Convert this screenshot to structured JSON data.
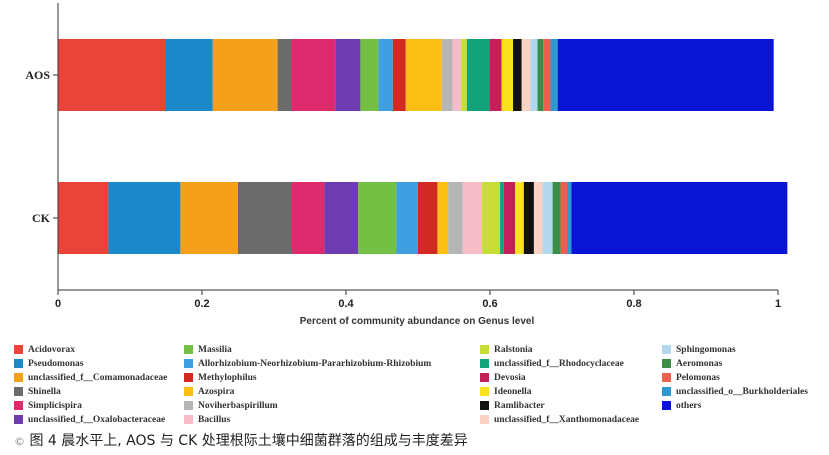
{
  "caption": {
    "prefix": "©",
    "text": "图 4 晨水平上, AOS 与 CK 处理根际土壤中细菌群落的组成与丰度差异"
  },
  "chart_data": {
    "type": "bar",
    "orientation": "horizontal",
    "stacked": true,
    "title": "",
    "xlabel": "Percent of community abundance on Genus level",
    "ylabel": "",
    "xlim": [
      0,
      1
    ],
    "xticks": [
      "0",
      "0.2",
      "0.4",
      "0.6",
      "0.8",
      "1"
    ],
    "categories": [
      "AOS",
      "CK"
    ],
    "legend_position": "bottom",
    "series": [
      {
        "name": "Acidovorax",
        "color": "#e8443a",
        "values": [
          0.15,
          0.07
        ]
      },
      {
        "name": "Pseudomonas",
        "color": "#1a88c9",
        "values": [
          0.065,
          0.1
        ]
      },
      {
        "name": "unclassified_f__Comamonadaceae",
        "color": "#f5a01a",
        "values": [
          0.09,
          0.08
        ]
      },
      {
        "name": "Shinella",
        "color": "#6b6b6b",
        "values": [
          0.02,
          0.075
        ]
      },
      {
        "name": "Simplicispira",
        "color": "#dc2a6c",
        "values": [
          0.06,
          0.045
        ]
      },
      {
        "name": "unclassified_f__Oxalobacteraceae",
        "color": "#6e3bb0",
        "values": [
          0.035,
          0.047
        ]
      },
      {
        "name": "Massilia",
        "color": "#74c044",
        "values": [
          0.025,
          0.053
        ]
      },
      {
        "name": "Allorhizobium-Neorhizobium-Pararhizobium-Rhizobium",
        "color": "#3f9fe0",
        "values": [
          0.02,
          0.03
        ]
      },
      {
        "name": "Methylophilus",
        "color": "#d02a22",
        "values": [
          0.018,
          0.027
        ]
      },
      {
        "name": "Azospira",
        "color": "#fbbf16",
        "values": [
          0.05,
          0.015
        ]
      },
      {
        "name": "Noviherbaspirillum",
        "color": "#b5b5b5",
        "values": [
          0.015,
          0.02
        ]
      },
      {
        "name": "Bacillus",
        "color": "#f6bdc9",
        "values": [
          0.012,
          0.027
        ]
      },
      {
        "name": "Ralstonia",
        "color": "#c8dc38",
        "values": [
          0.008,
          0.025
        ]
      },
      {
        "name": "unclassified_f__Rhodocyclaceae",
        "color": "#12a37b",
        "values": [
          0.032,
          0.005
        ]
      },
      {
        "name": "Devosia",
        "color": "#c4205a",
        "values": [
          0.016,
          0.016
        ]
      },
      {
        "name": "Ideonella",
        "color": "#fbe21e",
        "values": [
          0.016,
          0.012
        ]
      },
      {
        "name": "Ramlibacter",
        "color": "#111111",
        "values": [
          0.012,
          0.014
        ]
      },
      {
        "name": "unclassified_f__Xanthomonadaceae",
        "color": "#f9d2c4",
        "values": [
          0.012,
          0.012
        ]
      },
      {
        "name": "Sphingomonas",
        "color": "#b3d7ec",
        "values": [
          0.01,
          0.014
        ]
      },
      {
        "name": "Aeromonas",
        "color": "#3b8d47",
        "values": [
          0.008,
          0.011
        ]
      },
      {
        "name": "Pelomonas",
        "color": "#ef5e4e",
        "values": [
          0.01,
          0.009
        ]
      },
      {
        "name": "unclassified_o__Burkholderiales",
        "color": "#2a9ad0",
        "values": [
          0.01,
          0.006
        ]
      },
      {
        "name": "others",
        "color": "#0a14d4",
        "values": [
          0.3,
          0.3
        ]
      }
    ]
  }
}
